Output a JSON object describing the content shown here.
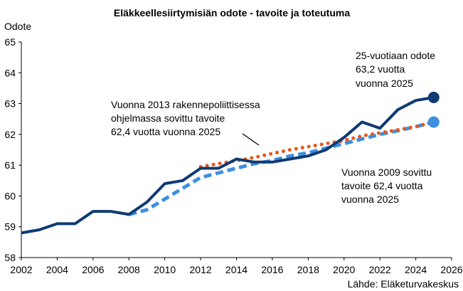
{
  "chart_data": {
    "type": "line",
    "title": "Eläkkeellesiirtymisiän odote - tavoite ja toteutuma",
    "ylabel": "Odote",
    "xlim": [
      2002,
      2026
    ],
    "ylim": [
      58,
      65
    ],
    "x_ticks": [
      "2002",
      "2004",
      "2006",
      "2008",
      "2010",
      "2012",
      "2014",
      "2016",
      "2018",
      "2020",
      "2022",
      "2024",
      "2026"
    ],
    "y_ticks": [
      "58",
      "59",
      "60",
      "61",
      "62",
      "63",
      "64",
      "65"
    ],
    "grid": false,
    "colors": {
      "actual": "#0f3a73",
      "target_2009": "#3d8fe0",
      "target_2013": "#e8571c"
    },
    "series": [
      {
        "key": "actual",
        "style": "solid",
        "x": [
          2002,
          2003,
          2004,
          2005,
          2006,
          2007,
          2008,
          2009,
          2010,
          2011,
          2012,
          2013,
          2014,
          2015,
          2016,
          2017,
          2018,
          2019,
          2020,
          2021,
          2022,
          2023,
          2024,
          2025
        ],
        "y": [
          58.8,
          58.9,
          59.1,
          59.1,
          59.5,
          59.5,
          59.4,
          59.8,
          60.4,
          60.5,
          60.9,
          60.9,
          61.2,
          61.1,
          61.1,
          61.2,
          61.3,
          61.5,
          61.9,
          62.4,
          62.2,
          62.8,
          63.1,
          63.2
        ]
      },
      {
        "key": "target_2009",
        "style": "dashed",
        "x": [
          2008,
          2009,
          2010,
          2011,
          2012,
          2013,
          2014,
          2015,
          2016,
          2017,
          2018,
          2019,
          2020,
          2021,
          2022,
          2023,
          2024,
          2025
        ],
        "y": [
          59.4,
          59.55,
          59.9,
          60.25,
          60.6,
          60.75,
          60.9,
          61.05,
          61.15,
          61.3,
          61.4,
          61.55,
          61.7,
          61.85,
          62.0,
          62.12,
          62.25,
          62.4
        ]
      },
      {
        "key": "target_2013",
        "style": "dotted",
        "x": [
          2012,
          2013,
          2014,
          2015,
          2016,
          2017,
          2018,
          2019,
          2020,
          2021,
          2022,
          2023,
          2024,
          2025
        ],
        "y": [
          60.95,
          61.05,
          61.15,
          61.25,
          61.38,
          61.5,
          61.6,
          61.7,
          61.8,
          61.95,
          62.05,
          62.15,
          62.25,
          62.4
        ]
      }
    ],
    "endpoints": [
      {
        "series": "actual",
        "x": 2025,
        "y": 63.2
      },
      {
        "series": "target_2009",
        "x": 2025,
        "y": 62.4
      }
    ],
    "annotations": {
      "actual_end": [
        "25-vuotiaan odote",
        "63,2 vuotta",
        "vuonna 2025"
      ],
      "target_2013": [
        "Vuonna 2013 rakennepoliittisessa",
        "ohjelmassa sovittu tavoite",
        "62,4 vuotta vuonna 2025"
      ],
      "target_2009": [
        "Vuonna 2009 sovittu",
        "tavoite 62,4 vuotta",
        "vuonna 2025"
      ]
    },
    "source": "Lähde: Eläketurvakeskus"
  }
}
